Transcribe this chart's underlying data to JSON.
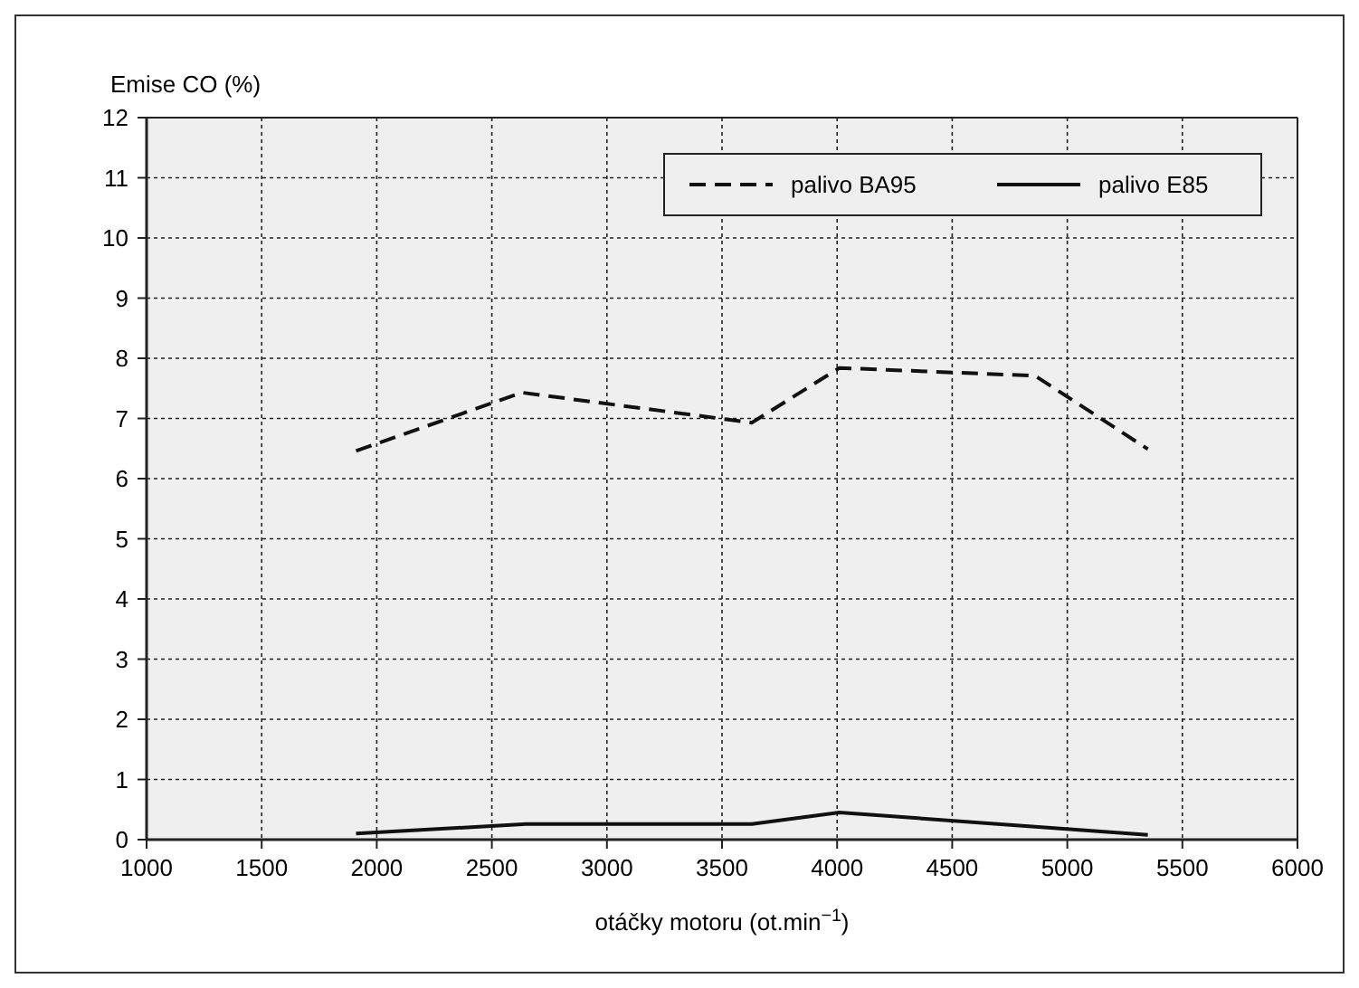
{
  "chart_data": {
    "type": "line",
    "xlabel": "otáčky motoru (ot.min$^{−1}$)",
    "ylabel": "Emise CO (%)",
    "xlim": [
      1000,
      6000
    ],
    "xticks": [
      1000,
      1500,
      2000,
      2500,
      3000,
      3500,
      4000,
      4500,
      5000,
      5500,
      6000
    ],
    "ylim": [
      0,
      12
    ],
    "yticks": [
      0,
      1,
      2,
      3,
      4,
      5,
      6,
      7,
      8,
      9,
      10,
      11,
      12
    ],
    "grid": true,
    "legend": "top right",
    "series": [
      {
        "name": "palivo BA95",
        "color": "#111111",
        "line_style": "dashed",
        "x": [
          1910,
          2630,
          3630,
          4010,
          4860,
          5350
        ],
        "values": [
          6.46,
          7.43,
          6.93,
          7.84,
          7.71,
          6.49
        ]
      },
      {
        "name": "palivo E85",
        "color": "#111111",
        "line_style": "solid",
        "x": [
          1910,
          2650,
          3630,
          4010,
          5350
        ],
        "values": [
          0.1,
          0.26,
          0.26,
          0.45,
          0.08
        ]
      }
    ]
  }
}
